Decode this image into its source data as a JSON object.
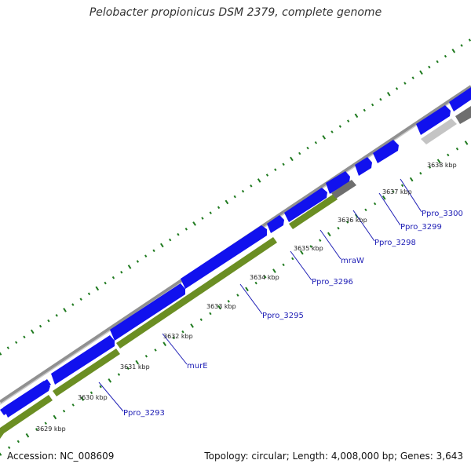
{
  "title": "Pelobacter propionicus DSM 2379, complete genome",
  "footer": {
    "accession": "Accession: NC_008609",
    "topology": "Topology: circular; Length: 4,008,000 bp; Genes: 3,643"
  },
  "colors": {
    "forward_cds": "#1111ee",
    "reverse_cds": "#6b8e23",
    "pseudo_dark": "#6e6e6e",
    "pseudo_light": "#c4c4c4",
    "backbone": "#8a8a8a",
    "tick_dots": "#1f7a1f",
    "gene_label": "#1d1db5"
  },
  "scale_labels": [
    "3629 kbp",
    "3630 kbp",
    "3631 kbp",
    "3632 kbp",
    "3633 kbp",
    "3634 kbp",
    "3635 kbp",
    "3636 kbp",
    "3637 kbp",
    "3638 kbp"
  ],
  "genes": [
    "Ppro_3293",
    "murE",
    "Ppro_3295",
    "Ppro_3296",
    "mraW",
    "Ppro_3298",
    "Ppro_3299",
    "Ppro_3300"
  ]
}
